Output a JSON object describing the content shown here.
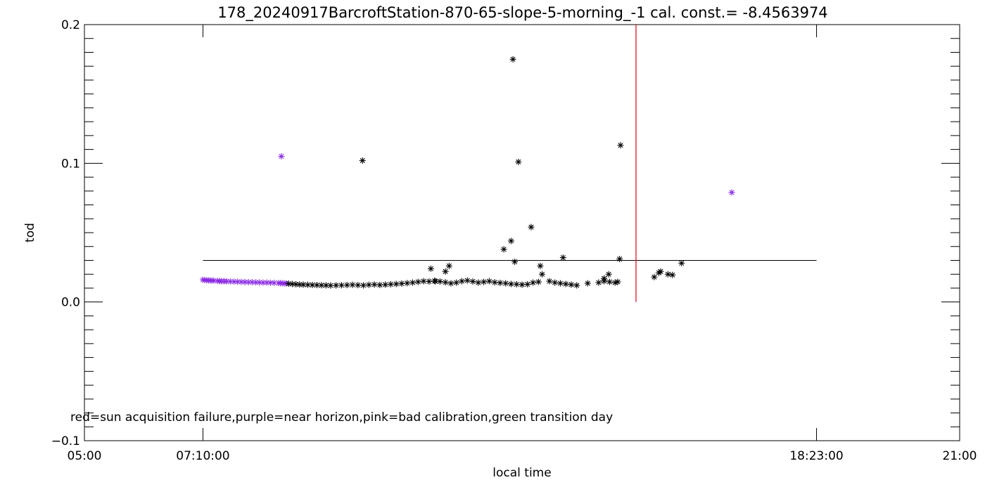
{
  "chart_data": {
    "type": "scatter",
    "title": "178_20240917BarcroftStation-870-65-slope-5-morning_-1 cal. const.= -8.4563974",
    "xlabel": "local time",
    "ylabel": "tod",
    "xlim": [
      "05:00",
      "21:00"
    ],
    "ylim": [
      -0.1,
      0.2
    ],
    "x_ticks": [
      "05:00",
      "07:10:00",
      "18:23:00",
      "21:00"
    ],
    "y_ticks": [
      "-0.1",
      "0.0",
      "0.1",
      "0.2"
    ],
    "grid": false,
    "marker": "asterisk",
    "annotation": "red=sun acquisition failure,purple=near horizon,pink=bad calibration,green transition day",
    "colors": {
      "axes": "#000000",
      "normal": "#000000",
      "near_horizon": "#8a2be2",
      "sun_failure_line": "#e0001b"
    },
    "reference_line": {
      "y": 0.03,
      "x_start": "07:10",
      "x_end": "18:23",
      "color": "#000000"
    },
    "sun_failure_line": {
      "x": "15:05",
      "y_range": [
        0.0,
        0.2
      ],
      "color": "#e0001b"
    },
    "series": [
      {
        "category": "near_horizon",
        "color": "#8a2be2",
        "points": [
          [
            "07:10",
            0.016
          ],
          [
            "07:12",
            0.0158
          ],
          [
            "07:14",
            0.0157
          ],
          [
            "07:16",
            0.0156
          ],
          [
            "07:18",
            0.0155
          ],
          [
            "07:20",
            0.0155
          ],
          [
            "07:22",
            0.0154
          ],
          [
            "07:26",
            0.0152
          ],
          [
            "07:28",
            0.0151
          ],
          [
            "07:30",
            0.015
          ],
          [
            "07:33",
            0.015
          ],
          [
            "07:36",
            0.0149
          ],
          [
            "07:40",
            0.0148
          ],
          [
            "07:44",
            0.0147
          ],
          [
            "07:48",
            0.0146
          ],
          [
            "07:52",
            0.0145
          ],
          [
            "07:56",
            0.0144
          ],
          [
            "08:00",
            0.0143
          ],
          [
            "08:04",
            0.0143
          ],
          [
            "08:08",
            0.0142
          ],
          [
            "08:12",
            0.0141
          ],
          [
            "08:16",
            0.014
          ],
          [
            "08:20",
            0.014
          ],
          [
            "08:24",
            0.0139
          ],
          [
            "08:28",
            0.0138
          ],
          [
            "08:33",
            0.0137
          ],
          [
            "08:35",
            0.0136
          ],
          [
            "08:37",
            0.0135
          ],
          [
            "08:39",
            0.0134
          ],
          [
            "08:41",
            0.0134
          ],
          [
            "08:36",
            0.105
          ],
          [
            "16:50",
            0.079
          ]
        ]
      },
      {
        "category": "normal",
        "color": "#000000",
        "points": [
          [
            "08:44",
            0.0132
          ],
          [
            "08:48",
            0.013
          ],
          [
            "08:52",
            0.0128
          ],
          [
            "08:56",
            0.0126
          ],
          [
            "09:00",
            0.0125
          ],
          [
            "09:05",
            0.0124
          ],
          [
            "09:10",
            0.0123
          ],
          [
            "09:15",
            0.0122
          ],
          [
            "09:20",
            0.0121
          ],
          [
            "09:25",
            0.012
          ],
          [
            "09:30",
            0.0119
          ],
          [
            "09:36",
            0.012
          ],
          [
            "09:42",
            0.0121
          ],
          [
            "09:48",
            0.0122
          ],
          [
            "09:54",
            0.0124
          ],
          [
            "10:00",
            0.0122
          ],
          [
            "10:06",
            0.012
          ],
          [
            "10:12",
            0.0124
          ],
          [
            "10:18",
            0.0126
          ],
          [
            "10:24",
            0.0123
          ],
          [
            "10:30",
            0.0125
          ],
          [
            "10:36",
            0.0128
          ],
          [
            "10:42",
            0.013
          ],
          [
            "10:48",
            0.0133
          ],
          [
            "10:54",
            0.0136
          ],
          [
            "11:00",
            0.014
          ],
          [
            "11:06",
            0.0145
          ],
          [
            "11:12",
            0.015
          ],
          [
            "11:18",
            0.0148
          ],
          [
            "11:24",
            0.0152
          ],
          [
            "11:30",
            0.0148
          ],
          [
            "11:36",
            0.0142
          ],
          [
            "11:42",
            0.0135
          ],
          [
            "11:48",
            0.014
          ],
          [
            "11:54",
            0.015
          ],
          [
            "12:00",
            0.0155
          ],
          [
            "12:06",
            0.0148
          ],
          [
            "12:12",
            0.014
          ],
          [
            "12:18",
            0.0145
          ],
          [
            "12:24",
            0.015
          ],
          [
            "12:30",
            0.0142
          ],
          [
            "12:36",
            0.0138
          ],
          [
            "12:42",
            0.0135
          ],
          [
            "12:48",
            0.013
          ],
          [
            "12:54",
            0.0128
          ],
          [
            "13:00",
            0.0125
          ],
          [
            "13:06",
            0.0128
          ],
          [
            "13:12",
            0.014
          ],
          [
            "13:18",
            0.0145
          ],
          [
            "13:30",
            0.015
          ],
          [
            "13:36",
            0.014
          ],
          [
            "13:42",
            0.0135
          ],
          [
            "13:48",
            0.013
          ],
          [
            "13:54",
            0.0125
          ],
          [
            "14:00",
            0.012
          ],
          [
            "14:12",
            0.0135
          ],
          [
            "14:24",
            0.014
          ],
          [
            "14:30",
            0.015
          ],
          [
            "14:36",
            0.0145
          ],
          [
            "14:42",
            0.014
          ],
          [
            "14:45",
            0.0145
          ],
          [
            "15:25",
            0.018
          ],
          [
            "15:30",
            0.021
          ],
          [
            "15:32",
            0.022
          ],
          [
            "15:40",
            0.02
          ],
          [
            "15:45",
            0.0195
          ],
          [
            "15:55",
            0.028
          ],
          [
            "10:05",
            0.102
          ],
          [
            "12:50",
            0.175
          ],
          [
            "12:56",
            0.101
          ],
          [
            "14:48",
            0.113
          ],
          [
            "13:10",
            0.054
          ],
          [
            "12:40",
            0.038
          ],
          [
            "12:48",
            0.044
          ],
          [
            "12:52",
            0.029
          ],
          [
            "13:20",
            0.026
          ],
          [
            "13:45",
            0.032
          ],
          [
            "14:47",
            0.031
          ],
          [
            "11:20",
            0.024
          ],
          [
            "11:36",
            0.022
          ],
          [
            "11:40",
            0.026
          ],
          [
            "13:22",
            0.02
          ],
          [
            "14:35",
            0.02
          ],
          [
            "14:30",
            0.017
          ],
          [
            "11:25",
            0.015
          ]
        ]
      }
    ]
  }
}
